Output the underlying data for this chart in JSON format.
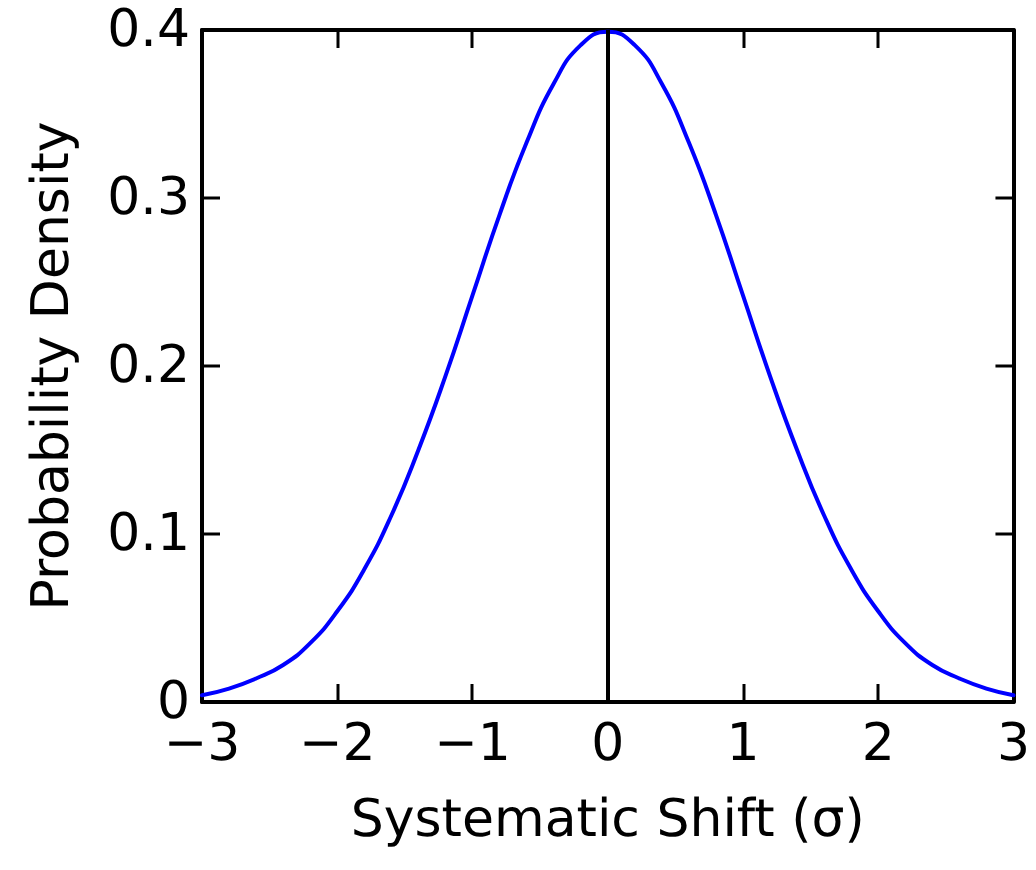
{
  "chart_data": {
    "type": "line",
    "xlabel": "Systematic Shift (σ)",
    "ylabel": "Probability Density",
    "x": [
      -3,
      -2.8,
      -2.6,
      -2.4,
      -2.2,
      -2,
      -1.8,
      -1.6,
      -1.4,
      -1.2,
      -1,
      -0.8,
      -0.6,
      -0.4,
      -0.2,
      0,
      0.2,
      0.4,
      0.6,
      0.8,
      1,
      1.2,
      1.4,
      1.6,
      1.8,
      2,
      2.2,
      2.4,
      2.6,
      2.8,
      3
    ],
    "series": [
      {
        "color": "#0000ff",
        "values": [
          0.004,
          0.008,
          0.014,
          0.022,
          0.035,
          0.054,
          0.079,
          0.111,
          0.15,
          0.194,
          0.242,
          0.29,
          0.333,
          0.368,
          0.391,
          0.399,
          0.391,
          0.368,
          0.333,
          0.29,
          0.242,
          0.194,
          0.15,
          0.111,
          0.079,
          0.054,
          0.035,
          0.022,
          0.014,
          0.008,
          0.004
        ]
      }
    ],
    "xlim": [
      -3,
      3
    ],
    "xticks": [
      {
        "value": -3,
        "label": "−3"
      },
      {
        "value": -2,
        "label": "−2"
      },
      {
        "value": -1,
        "label": "−1"
      },
      0,
      1,
      2,
      3
    ],
    "ylim": [
      0,
      0.4
    ],
    "yticks": [
      0,
      0.1,
      0.2,
      0.3,
      0.4
    ],
    "ref_lines": [
      {
        "axis": "x",
        "value": 0,
        "color": "#000000"
      }
    ],
    "marker": "none",
    "line_style": "solid"
  }
}
